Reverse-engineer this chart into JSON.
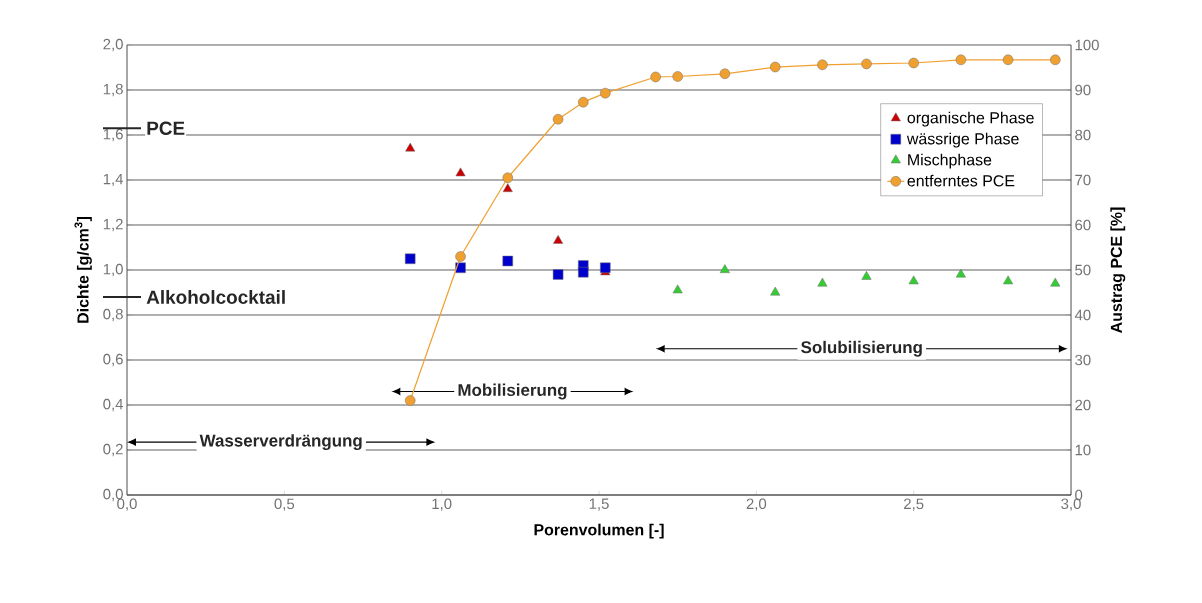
{
  "chart_data": {
    "type": "scatter",
    "xlabel": "Porenvolumen [-]",
    "ylabel": "Dichte [g/cm$^{3}$]",
    "y2label": "Austrag PCE [%]",
    "xlim": [
      0,
      3
    ],
    "xticks": [
      {
        "value": 0,
        "label": "0,0"
      },
      {
        "value": 0.5,
        "label": "0,5"
      },
      {
        "value": 1,
        "label": "1,0"
      },
      {
        "value": 1.5,
        "label": "1,5"
      },
      {
        "value": 2,
        "label": "2,0"
      },
      {
        "value": 2.5,
        "label": "2,5"
      },
      {
        "value": 3,
        "label": "3,0"
      }
    ],
    "ylim": [
      0,
      2
    ],
    "yticks": [
      {
        "value": 0,
        "label": "0,0"
      },
      {
        "value": 0.2,
        "label": "0,2"
      },
      {
        "value": 0.4,
        "label": "0,4"
      },
      {
        "value": 0.6,
        "label": "0,6"
      },
      {
        "value": 0.8,
        "label": "0,8"
      },
      {
        "value": 1,
        "label": "1,0"
      },
      {
        "value": 1.2,
        "label": "1,2"
      },
      {
        "value": 1.4,
        "label": "1,4"
      },
      {
        "value": 1.6,
        "label": "1,6"
      },
      {
        "value": 1.8,
        "label": "1,8"
      },
      {
        "value": 2,
        "label": "2,0"
      }
    ],
    "y2lim": [
      0,
      100
    ],
    "y2ticks": [
      0,
      10,
      20,
      30,
      40,
      50,
      60,
      70,
      80,
      90,
      100
    ],
    "grid": "y",
    "legend": "top right",
    "series": [
      {
        "name": "organische Phase",
        "marker": "triangle",
        "color": "#cc0000",
        "x": [
          0.9,
          1.06,
          1.21,
          1.37,
          1.52
        ],
        "values": [
          1.54,
          1.43,
          1.36,
          1.13,
          0.99
        ]
      },
      {
        "name": "wässrige Phase",
        "marker": "square",
        "color": "#0000cc",
        "x": [
          0.9,
          1.06,
          1.21,
          1.37,
          1.45,
          1.45,
          1.52
        ],
        "values": [
          1.05,
          1.01,
          1.04,
          0.98,
          1.02,
          0.99,
          1.01
        ]
      },
      {
        "name": "Mischphase",
        "marker": "triangle",
        "color": "#33cc33",
        "x": [
          1.75,
          1.9,
          2.06,
          2.21,
          2.35,
          2.5,
          2.65,
          2.8,
          2.95
        ],
        "values": [
          0.91,
          1.0,
          0.9,
          0.94,
          0.97,
          0.95,
          0.98,
          0.95,
          0.94
        ]
      },
      {
        "name": "entferntes PCE",
        "type": "line",
        "marker": "circle",
        "axis": "y2",
        "color": "#f0a030",
        "x": [
          0.9,
          1.06,
          1.21,
          1.37,
          1.45,
          1.52,
          1.68,
          1.75,
          1.9,
          2.06,
          2.21,
          2.35,
          2.5,
          2.65,
          2.8,
          2.95
        ],
        "values": [
          21,
          53,
          70.5,
          83.5,
          87.3,
          89.3,
          92.9,
          93,
          93.6,
          95.1,
          95.6,
          95.8,
          96,
          96.7,
          96.7,
          96.7
        ]
      }
    ],
    "ref_lines": [
      {
        "axis": "y",
        "value": 1.63,
        "label": "PCE"
      },
      {
        "axis": "y",
        "value": 0.88,
        "label": "Alkoholcocktail"
      }
    ],
    "annotations": [
      "Wasserverdrängung",
      "Mobilisierung",
      "Solubilisierung"
    ]
  }
}
